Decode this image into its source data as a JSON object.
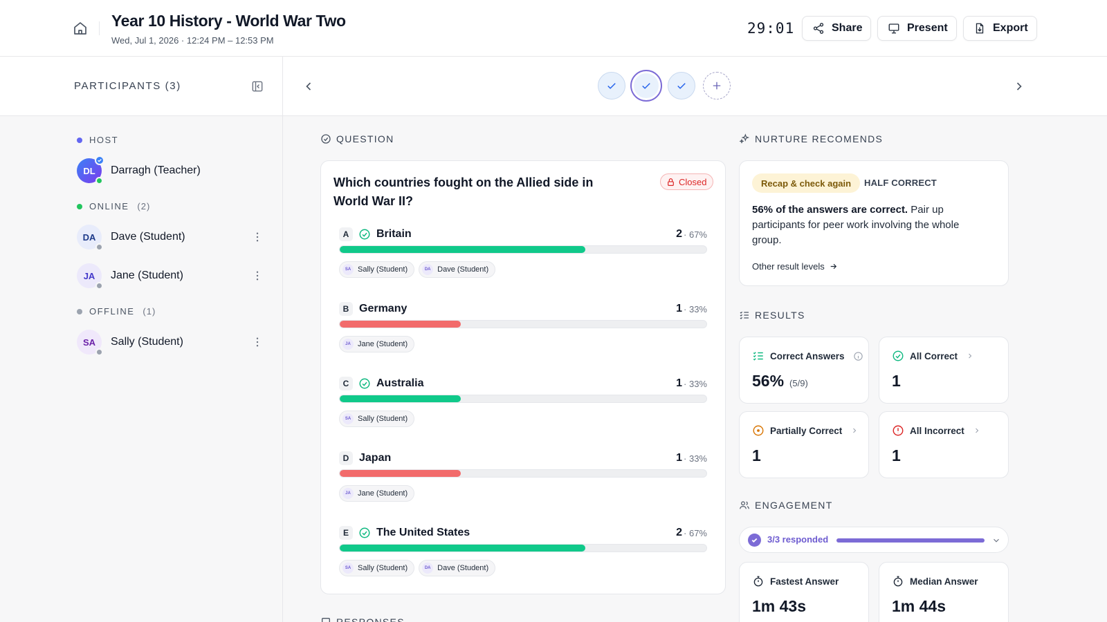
{
  "header": {
    "title": "Year 10 History - World War Two",
    "subtitle": "Wed, Jul 1, 2026  · 12:24 PM – 12:53 PM",
    "timer": "29:01",
    "share_label": "Share",
    "present_label": "Present",
    "export_label": "Export"
  },
  "sidebar": {
    "title": "PARTICIPANTS (3)",
    "host_label": "HOST",
    "host": {
      "initials": "DL",
      "name": "Darragh (Teacher)"
    },
    "online_label": "ONLINE",
    "online_count": "(2)",
    "online": [
      {
        "initials": "DA",
        "name": "Dave (Student)"
      },
      {
        "initials": "JA",
        "name": "Jane (Student)"
      }
    ],
    "offline_label": "OFFLINE",
    "offline_count": "(1)",
    "offline": [
      {
        "initials": "SA",
        "name": "Sally (Student)"
      }
    ]
  },
  "question": {
    "section_label": "QUESTION",
    "text": "Which countries fought on the Allied side in World War II?",
    "status": "Closed",
    "options": [
      {
        "letter": "A",
        "name": "Britain",
        "correct": true,
        "count": "2",
        "pct": "· 67%",
        "fraction": 0.67,
        "chips": [
          [
            "SA",
            "Sally (Student)"
          ],
          [
            "DA",
            "Dave (Student)"
          ]
        ]
      },
      {
        "letter": "B",
        "name": "Germany",
        "correct": false,
        "count": "1",
        "pct": "· 33%",
        "fraction": 0.33,
        "chips": [
          [
            "JA",
            "Jane (Student)"
          ]
        ]
      },
      {
        "letter": "C",
        "name": "Australia",
        "correct": true,
        "count": "1",
        "pct": "· 33%",
        "fraction": 0.33,
        "chips": [
          [
            "SA",
            "Sally (Student)"
          ]
        ]
      },
      {
        "letter": "D",
        "name": "Japan",
        "correct": false,
        "count": "1",
        "pct": "· 33%",
        "fraction": 0.33,
        "chips": [
          [
            "JA",
            "Jane (Student)"
          ]
        ]
      },
      {
        "letter": "E",
        "name": "The United States",
        "correct": true,
        "count": "2",
        "pct": "· 67%",
        "fraction": 0.67,
        "chips": [
          [
            "SA",
            "Sally (Student)"
          ],
          [
            "DA",
            "Dave (Student)"
          ]
        ]
      }
    ]
  },
  "responses_label": "RESPONSES",
  "recommend": {
    "section_label": "NURTURE RECOMENDS",
    "pill": "Recap & check again",
    "level": "HALF CORRECT",
    "body_bold": "56% of the answers are correct.",
    "body_rest": " Pair up participants for peer work involving the whole group.",
    "link": "Other result levels"
  },
  "results": {
    "section_label": "RESULTS",
    "correct_answers_label": "Correct Answers",
    "correct_answers_value": "56%",
    "correct_answers_sub": "(5/9)",
    "all_correct_label": "All Correct",
    "all_correct_value": "1",
    "partially_correct_label": "Partially Correct",
    "partially_correct_value": "1",
    "all_incorrect_label": "All Incorrect",
    "all_incorrect_value": "1"
  },
  "engagement": {
    "section_label": "ENGAGEMENT",
    "responded": "3/3 responded",
    "fraction": 1.0,
    "fastest_label": "Fastest Answer",
    "fastest_value": "1m 43s",
    "median_label": "Median Answer",
    "median_value": "1m 44s"
  },
  "colors": {
    "correct": "#10c98a",
    "incorrect": "#f26b6b",
    "accent": "#7c6bd6",
    "online": "#22c55e",
    "offline": "#9ca3af",
    "host": "#6366f1"
  }
}
